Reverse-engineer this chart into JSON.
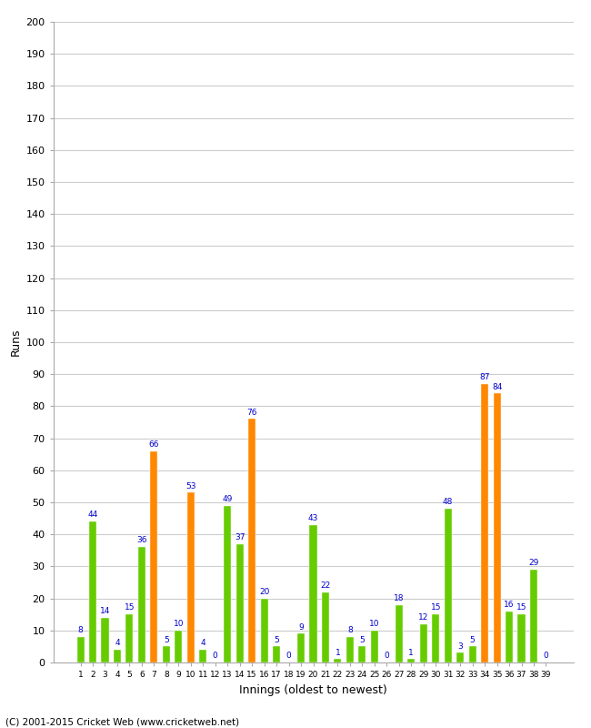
{
  "xlabel": "Innings (oldest to newest)",
  "ylabel": "Runs",
  "ylim": [
    0,
    200
  ],
  "yticks": [
    0,
    10,
    20,
    30,
    40,
    50,
    60,
    70,
    80,
    90,
    100,
    110,
    120,
    130,
    140,
    150,
    160,
    170,
    180,
    190,
    200
  ],
  "innings": [
    1,
    2,
    3,
    4,
    5,
    6,
    7,
    8,
    9,
    10,
    11,
    12,
    13,
    14,
    15,
    16,
    17,
    18,
    19,
    20,
    21,
    22,
    23,
    24,
    25,
    26,
    27,
    28,
    29,
    30,
    31,
    32,
    33,
    34,
    35,
    36,
    37,
    38,
    39
  ],
  "values": [
    8,
    44,
    14,
    4,
    15,
    36,
    66,
    5,
    10,
    53,
    4,
    0,
    49,
    37,
    76,
    20,
    5,
    0,
    9,
    43,
    22,
    1,
    8,
    5,
    10,
    0,
    18,
    1,
    12,
    15,
    48,
    3,
    5,
    87,
    84,
    16,
    15,
    29,
    0
  ],
  "colors": [
    "#66cc00",
    "#66cc00",
    "#66cc00",
    "#66cc00",
    "#66cc00",
    "#66cc00",
    "#ff8800",
    "#66cc00",
    "#66cc00",
    "#ff8800",
    "#66cc00",
    "#66cc00",
    "#66cc00",
    "#66cc00",
    "#ff8800",
    "#66cc00",
    "#66cc00",
    "#66cc00",
    "#66cc00",
    "#66cc00",
    "#66cc00",
    "#66cc00",
    "#66cc00",
    "#66cc00",
    "#66cc00",
    "#66cc00",
    "#66cc00",
    "#66cc00",
    "#66cc00",
    "#66cc00",
    "#66cc00",
    "#66cc00",
    "#66cc00",
    "#ff8800",
    "#ff8800",
    "#66cc00",
    "#66cc00",
    "#66cc00",
    "#66cc00"
  ],
  "footer": "(C) 2001-2015 Cricket Web (www.cricketweb.net)",
  "bg_color": "#ffffff",
  "grid_color": "#cccccc",
  "label_color": "#0000cc",
  "bar_width": 0.6,
  "figwidth": 6.5,
  "figheight": 8.0,
  "dpi": 100
}
